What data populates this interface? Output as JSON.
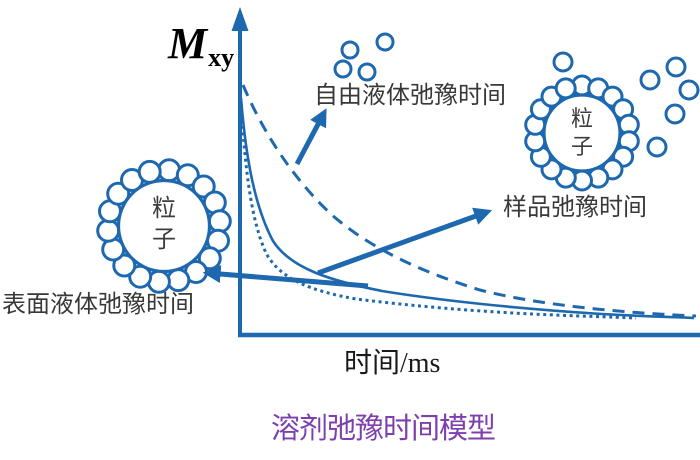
{
  "title": {
    "text": "溶剂弛豫时间模型",
    "color": "#7d3fae"
  },
  "axes": {
    "y_label_main": "M",
    "y_label_sub": "xy",
    "x_label": "时间/ms"
  },
  "curves": [
    {
      "label": "自由液体弛豫时间",
      "style": "dashed"
    },
    {
      "label": "样品弛豫时间",
      "style": "solid"
    },
    {
      "label": "表面液体弛豫时间",
      "style": "dotted"
    }
  ],
  "particles": {
    "left_label": "粒\n子",
    "right_label": "粒\n子"
  },
  "colors": {
    "accent_blue": "#1d68ae",
    "text_dark": "#383838"
  }
}
